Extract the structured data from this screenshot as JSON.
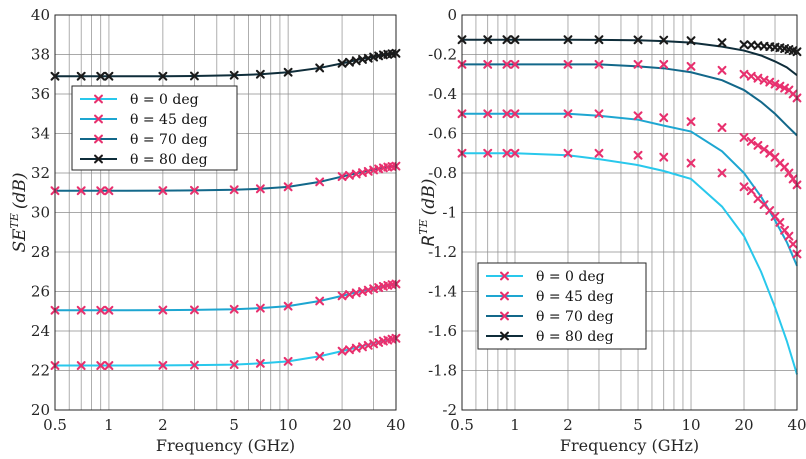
{
  "chart_data": [
    {
      "type": "line",
      "xscale": "log",
      "xlim": [
        0.5,
        40
      ],
      "ylim": [
        20,
        40
      ],
      "x_ticks": [
        0.5,
        1,
        2,
        5,
        10,
        20,
        40
      ],
      "x_tick_labels": [
        "0.5",
        "1",
        "2",
        "5",
        "10",
        "20",
        "40"
      ],
      "y_ticks": [
        20,
        22,
        24,
        26,
        28,
        30,
        32,
        34,
        36,
        38,
        40
      ],
      "y_tick_labels": [
        "20",
        "22",
        "24",
        "26",
        "28",
        "30",
        "32",
        "34",
        "36",
        "38",
        "40"
      ],
      "xlabel": "Frequency (GHz)",
      "ylabel_base": "SE",
      "ylabel_sup": "TE",
      "ylabel_unit": "(dB)",
      "grid": true,
      "legend_position": "upper-left",
      "series": [
        {
          "name": "θ = 0 deg",
          "line_color": "#29c8ec",
          "line": {
            "x": [
              0.5,
              1,
              2,
              3,
              5,
              7,
              10,
              15,
              20,
              25,
              30,
              35,
              40
            ],
            "y": [
              22.25,
              22.25,
              22.26,
              22.27,
              22.3,
              22.36,
              22.46,
              22.72,
              22.98,
              23.2,
              23.39,
              23.53,
              23.62
            ]
          },
          "markers": {
            "x": [
              0.5,
              0.7,
              0.9,
              1,
              2,
              3,
              5,
              7,
              10,
              15,
              20,
              22,
              24,
              26,
              28,
              30,
              32,
              34,
              36,
              38,
              40
            ],
            "y": [
              22.25,
              22.25,
              22.25,
              22.25,
              22.26,
              22.27,
              22.3,
              22.36,
              22.46,
              22.72,
              22.98,
              23.05,
              23.13,
              23.2,
              23.27,
              23.35,
              23.42,
              23.49,
              23.54,
              23.59,
              23.63
            ]
          }
        },
        {
          "name": "θ = 45 deg",
          "line_color": "#1ea6d1",
          "line": {
            "x": [
              0.5,
              1,
              2,
              3,
              5,
              7,
              10,
              15,
              20,
              25,
              30,
              35,
              40
            ],
            "y": [
              25.05,
              25.05,
              25.06,
              25.07,
              25.1,
              25.16,
              25.26,
              25.52,
              25.78,
              26.0,
              26.17,
              26.3,
              26.38
            ]
          },
          "markers": {
            "x": [
              0.5,
              0.7,
              0.9,
              1,
              2,
              3,
              5,
              7,
              10,
              15,
              20,
              22,
              24,
              26,
              28,
              30,
              32,
              34,
              36,
              38,
              40
            ],
            "y": [
              25.05,
              25.05,
              25.05,
              25.05,
              25.06,
              25.07,
              25.1,
              25.16,
              25.26,
              25.52,
              25.78,
              25.85,
              25.93,
              26.0,
              26.07,
              26.14,
              26.2,
              26.26,
              26.31,
              26.35,
              26.38
            ]
          }
        },
        {
          "name": "θ = 70 deg",
          "line_color": "#13688a",
          "line": {
            "x": [
              0.5,
              1,
              2,
              3,
              5,
              7,
              10,
              15,
              20,
              25,
              30,
              35,
              40
            ],
            "y": [
              31.1,
              31.1,
              31.11,
              31.12,
              31.15,
              31.2,
              31.3,
              31.55,
              31.82,
              32.02,
              32.18,
              32.29,
              32.35
            ]
          },
          "markers": {
            "x": [
              0.5,
              0.7,
              0.9,
              1,
              2,
              3,
              5,
              7,
              10,
              15,
              20,
              22,
              24,
              26,
              28,
              30,
              32,
              34,
              36,
              38,
              40
            ],
            "y": [
              31.1,
              31.1,
              31.1,
              31.1,
              31.11,
              31.12,
              31.15,
              31.2,
              31.3,
              31.55,
              31.82,
              31.88,
              31.95,
              32.02,
              32.08,
              32.15,
              32.21,
              32.26,
              32.3,
              32.33,
              32.35
            ]
          }
        },
        {
          "name": "θ = 80 deg",
          "line_color": "#0f2d3a",
          "line": {
            "x": [
              0.5,
              1,
              2,
              3,
              5,
              7,
              10,
              15,
              20,
              25,
              30,
              35,
              40
            ],
            "y": [
              36.9,
              36.9,
              36.9,
              36.91,
              36.95,
              37.0,
              37.1,
              37.32,
              37.55,
              37.75,
              37.9,
              38.0,
              38.05
            ]
          },
          "markers": {
            "x": [
              0.5,
              0.7,
              0.9,
              1,
              2,
              3,
              5,
              7,
              10,
              15,
              20,
              22,
              24,
              26,
              28,
              30,
              32,
              34,
              36,
              38,
              40
            ],
            "y": [
              36.9,
              36.9,
              36.9,
              36.9,
              36.9,
              36.91,
              36.95,
              37.0,
              37.1,
              37.32,
              37.55,
              37.61,
              37.68,
              37.75,
              37.81,
              37.87,
              37.93,
              37.98,
              38.01,
              38.04,
              38.06
            ]
          }
        }
      ],
      "marker_color": "#e8306e",
      "marker_color_dark": "#1a1a1a"
    },
    {
      "type": "line",
      "xscale": "log",
      "xlim": [
        0.5,
        40
      ],
      "ylim": [
        -2,
        0
      ],
      "x_ticks": [
        0.5,
        1,
        2,
        5,
        10,
        20,
        40
      ],
      "x_tick_labels": [
        "0.5",
        "1",
        "2",
        "5",
        "10",
        "20",
        "40"
      ],
      "y_ticks": [
        -2,
        -1.8,
        -1.6,
        -1.4,
        -1.2,
        -1,
        -0.8,
        -0.6,
        -0.4,
        -0.2,
        0
      ],
      "y_tick_labels": [
        "-2",
        "-1.8",
        "-1.6",
        "-1.4",
        "-1.2",
        "-1",
        "-0.8",
        "-0.6",
        "-0.4",
        "-0.2",
        "0"
      ],
      "xlabel": "Frequency (GHz)",
      "ylabel_base": "R",
      "ylabel_sup": "TE",
      "ylabel_unit": "(dB)",
      "grid": true,
      "legend_position": "lower-left",
      "series": [
        {
          "name": "θ = 0 deg",
          "line_color": "#29c8ec",
          "line": {
            "x": [
              0.5,
              1,
              2,
              3,
              5,
              7,
              10,
              15,
              20,
              25,
              30,
              35,
              40
            ],
            "y": [
              -0.7,
              -0.7,
              -0.71,
              -0.73,
              -0.76,
              -0.79,
              -0.83,
              -0.97,
              -1.12,
              -1.3,
              -1.48,
              -1.65,
              -1.82
            ]
          },
          "markers": {
            "x": [
              0.5,
              0.7,
              0.9,
              1,
              2,
              3,
              5,
              7,
              10,
              15,
              20,
              22,
              24,
              26,
              28,
              30,
              32,
              34,
              36,
              38,
              40
            ],
            "y": [
              -0.7,
              -0.7,
              -0.7,
              -0.7,
              -0.7,
              -0.7,
              -0.71,
              -0.72,
              -0.75,
              -0.8,
              -0.87,
              -0.89,
              -0.93,
              -0.96,
              -0.99,
              -1.02,
              -1.05,
              -1.09,
              -1.12,
              -1.16,
              -1.21
            ]
          }
        },
        {
          "name": "θ = 45 deg",
          "line_color": "#1ea6d1",
          "line": {
            "x": [
              0.5,
              1,
              2,
              3,
              5,
              7,
              10,
              15,
              20,
              25,
              30,
              35,
              40
            ],
            "y": [
              -0.5,
              -0.5,
              -0.5,
              -0.51,
              -0.53,
              -0.56,
              -0.59,
              -0.69,
              -0.8,
              -0.92,
              -1.04,
              -1.15,
              -1.27
            ]
          },
          "markers": {
            "x": [
              0.5,
              0.7,
              0.9,
              1,
              2,
              3,
              5,
              7,
              10,
              15,
              20,
              22,
              24,
              26,
              28,
              30,
              32,
              34,
              36,
              38,
              40
            ],
            "y": [
              -0.5,
              -0.5,
              -0.5,
              -0.5,
              -0.5,
              -0.5,
              -0.51,
              -0.52,
              -0.54,
              -0.57,
              -0.62,
              -0.64,
              -0.66,
              -0.68,
              -0.7,
              -0.72,
              -0.75,
              -0.77,
              -0.8,
              -0.83,
              -0.86
            ]
          }
        },
        {
          "name": "θ = 70 deg",
          "line_color": "#13688a",
          "line": {
            "x": [
              0.5,
              1,
              2,
              3,
              5,
              7,
              10,
              15,
              20,
              25,
              30,
              35,
              40
            ],
            "y": [
              -0.25,
              -0.25,
              -0.25,
              -0.25,
              -0.26,
              -0.27,
              -0.29,
              -0.33,
              -0.38,
              -0.44,
              -0.5,
              -0.56,
              -0.61
            ]
          },
          "markers": {
            "x": [
              0.5,
              0.7,
              0.9,
              1,
              2,
              3,
              5,
              7,
              10,
              15,
              20,
              22,
              24,
              26,
              28,
              30,
              32,
              34,
              36,
              38,
              40
            ],
            "y": [
              -0.25,
              -0.25,
              -0.25,
              -0.25,
              -0.25,
              -0.25,
              -0.25,
              -0.25,
              -0.26,
              -0.28,
              -0.3,
              -0.31,
              -0.32,
              -0.33,
              -0.34,
              -0.35,
              -0.36,
              -0.37,
              -0.38,
              -0.4,
              -0.42
            ]
          }
        },
        {
          "name": "θ = 80 deg",
          "line_color": "#0f2d3a",
          "line": {
            "x": [
              0.5,
              1,
              2,
              3,
              5,
              7,
              10,
              15,
              20,
              25,
              30,
              35,
              40
            ],
            "y": [
              -0.125,
              -0.125,
              -0.125,
              -0.126,
              -0.128,
              -0.132,
              -0.14,
              -0.16,
              -0.18,
              -0.205,
              -0.235,
              -0.265,
              -0.305
            ]
          },
          "markers": {
            "x": [
              0.5,
              0.7,
              0.9,
              1,
              2,
              3,
              5,
              7,
              10,
              15,
              20,
              22,
              24,
              26,
              28,
              30,
              32,
              34,
              36,
              38,
              40
            ],
            "y": [
              -0.125,
              -0.125,
              -0.125,
              -0.125,
              -0.125,
              -0.125,
              -0.126,
              -0.127,
              -0.13,
              -0.14,
              -0.15,
              -0.152,
              -0.155,
              -0.158,
              -0.16,
              -0.163,
              -0.166,
              -0.17,
              -0.175,
              -0.18,
              -0.186
            ]
          }
        }
      ],
      "marker_color": "#e8306e",
      "marker_color_dark": "#1a1a1a"
    }
  ]
}
